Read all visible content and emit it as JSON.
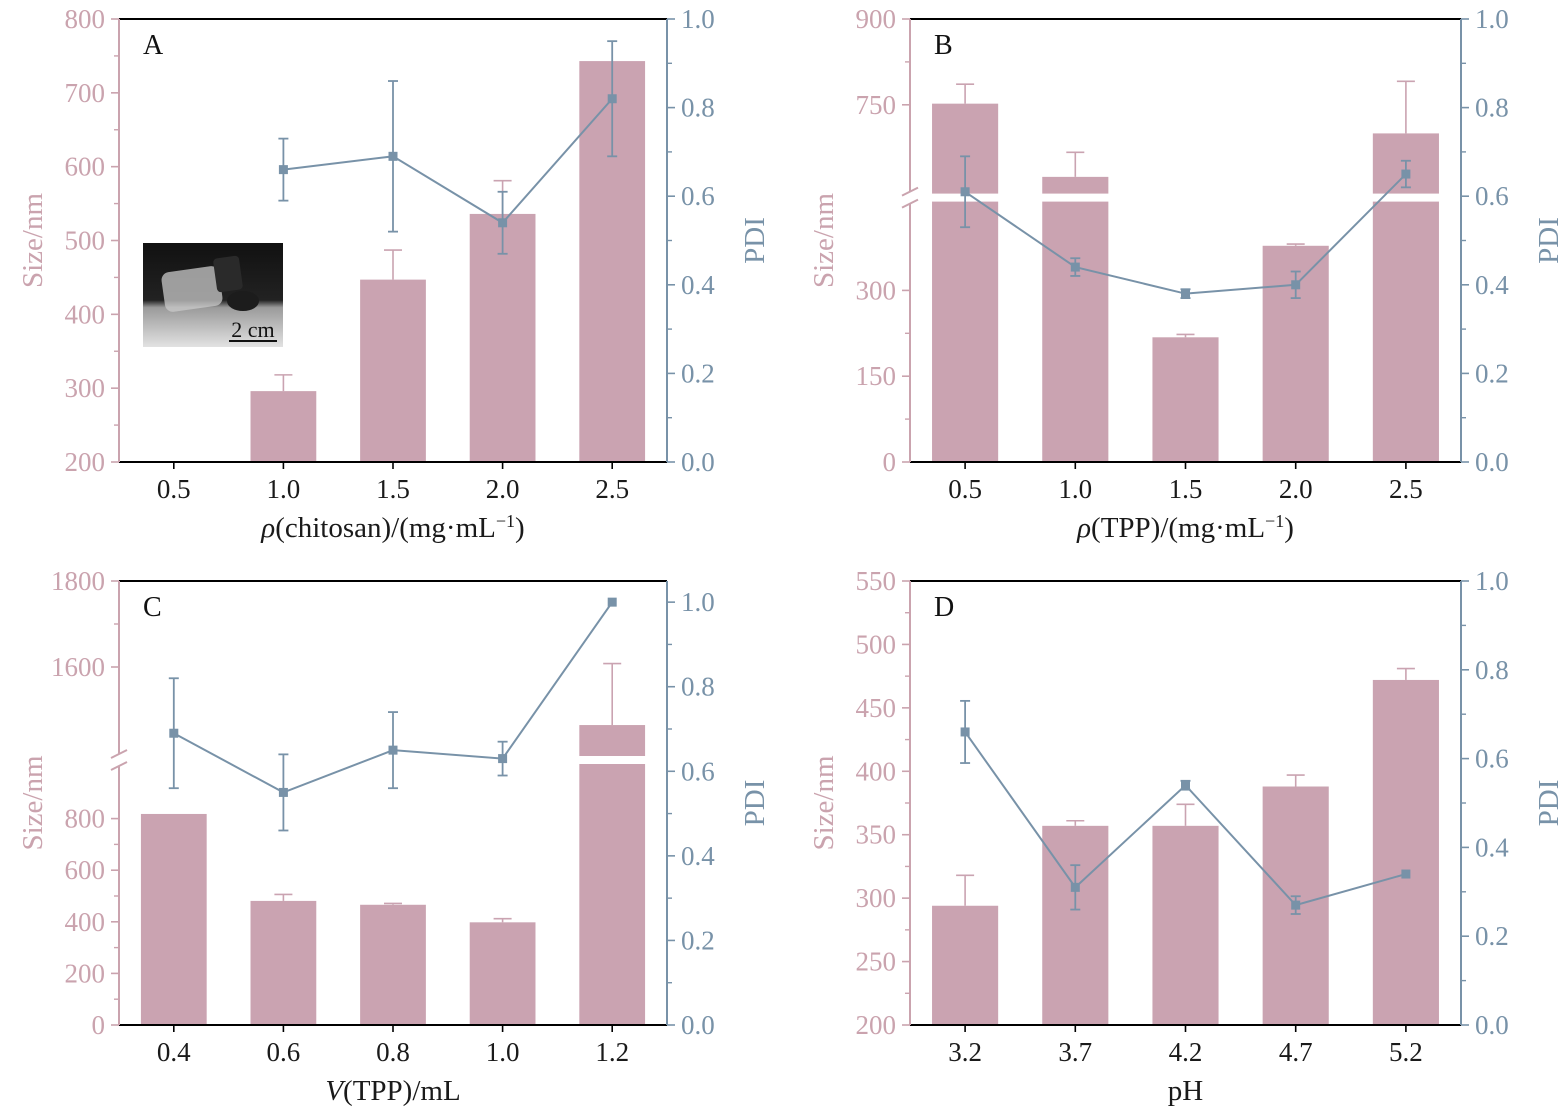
{
  "colors": {
    "bar": "#caa3b1",
    "line": "#7892a8",
    "size_axis": "#caa3ae",
    "pdi_axis": "#7892a8",
    "frame": "#000000"
  },
  "inset": {
    "scale_label": "2 cm"
  },
  "chart_data": [
    {
      "panel": "A",
      "type": "bar",
      "categories": [
        "0.5",
        "1.0",
        "1.5",
        "2.0",
        "2.5"
      ],
      "xlabel": "ρ(chitosan)/(mg·mL⁻¹)",
      "ylabel": "Size/nm",
      "y2label": "PDI",
      "ylim": [
        200,
        800
      ],
      "y_ticks": [
        "200",
        "300",
        "400",
        "500",
        "600",
        "700",
        "800"
      ],
      "y2lim": [
        0,
        1
      ],
      "y2_ticks": [
        "0.0",
        "0.2",
        "0.4",
        "0.6",
        "0.8",
        "1.0"
      ],
      "series": [
        {
          "name": "Size/nm",
          "type": "bar",
          "values": [
            null,
            296,
            447,
            536,
            743
          ],
          "errors": [
            null,
            22,
            40,
            45,
            0
          ]
        },
        {
          "name": "PDI",
          "type": "line",
          "axis": "right",
          "values": [
            null,
            0.66,
            0.69,
            0.54,
            0.82
          ],
          "errors": [
            null,
            0.07,
            0.17,
            0.07,
            0.13
          ]
        }
      ]
    },
    {
      "panel": "B",
      "type": "bar",
      "categories": [
        "0.5",
        "1.0",
        "1.5",
        "2.0",
        "2.5"
      ],
      "xlabel": "ρ(TPP)/(mg·mL⁻¹)",
      "ylabel": "Size/nm",
      "y2label": "PDI",
      "ylim": [
        0,
        900
      ],
      "y_ticks": [
        "0",
        "150",
        "300",
        "750",
        "900"
      ],
      "axis_break": [
        450,
        600
      ],
      "y2lim": [
        0,
        1
      ],
      "y2_ticks": [
        "0.0",
        "0.2",
        "0.4",
        "0.6",
        "0.8",
        "1.0"
      ],
      "series": [
        {
          "name": "Size/nm",
          "type": "bar",
          "values": [
            752,
            624,
            218,
            378,
            700
          ],
          "errors": [
            34,
            43,
            5,
            3,
            91
          ]
        },
        {
          "name": "PDI",
          "type": "line",
          "axis": "right",
          "values": [
            0.61,
            0.44,
            0.38,
            0.4,
            0.65
          ],
          "errors": [
            0.08,
            0.02,
            0.01,
            0.03,
            0.03
          ]
        }
      ]
    },
    {
      "panel": "C",
      "type": "bar",
      "categories": [
        "0.4",
        "0.6",
        "0.8",
        "1.0",
        "1.2"
      ],
      "xlabel": "V(TPP)/mL",
      "ylabel": "Size/nm",
      "y2label": "PDI",
      "ylim": [
        0,
        1800
      ],
      "y_ticks": [
        "0",
        "200",
        "400",
        "600",
        "800",
        "1600",
        "1800"
      ],
      "axis_break": [
        1000,
        1400
      ],
      "y2lim": [
        0,
        1.05
      ],
      "y2_ticks": [
        "0.0",
        "0.2",
        "0.4",
        "0.6",
        "0.8",
        "1.0"
      ],
      "series": [
        {
          "name": "Size/nm",
          "type": "bar",
          "values": [
            818,
            481,
            466,
            398,
            1465
          ],
          "errors": [
            0,
            25,
            5,
            14,
            143
          ]
        },
        {
          "name": "PDI",
          "type": "line",
          "axis": "right",
          "values": [
            0.69,
            0.55,
            0.65,
            0.63,
            1.0
          ],
          "errors": [
            0.13,
            0.09,
            0.09,
            0.04,
            0
          ]
        }
      ]
    },
    {
      "panel": "D",
      "type": "bar",
      "categories": [
        "3.2",
        "3.7",
        "4.2",
        "4.7",
        "5.2"
      ],
      "xlabel": "pH",
      "ylabel": "Size/nm",
      "y2label": "PDI",
      "ylim": [
        200,
        550
      ],
      "y_ticks": [
        "200",
        "250",
        "300",
        "350",
        "400",
        "450",
        "500",
        "550"
      ],
      "y2lim": [
        0,
        1
      ],
      "y2_ticks": [
        "0.0",
        "0.2",
        "0.4",
        "0.6",
        "0.8",
        "1.0"
      ],
      "series": [
        {
          "name": "Size/nm",
          "type": "bar",
          "values": [
            294,
            357,
            357,
            388,
            472
          ],
          "errors": [
            24,
            4,
            17,
            9,
            9
          ]
        },
        {
          "name": "PDI",
          "type": "line",
          "axis": "right",
          "values": [
            0.66,
            0.31,
            0.54,
            0.27,
            0.34
          ],
          "errors": [
            0.07,
            0.05,
            0.01,
            0.02,
            0
          ]
        }
      ]
    }
  ]
}
